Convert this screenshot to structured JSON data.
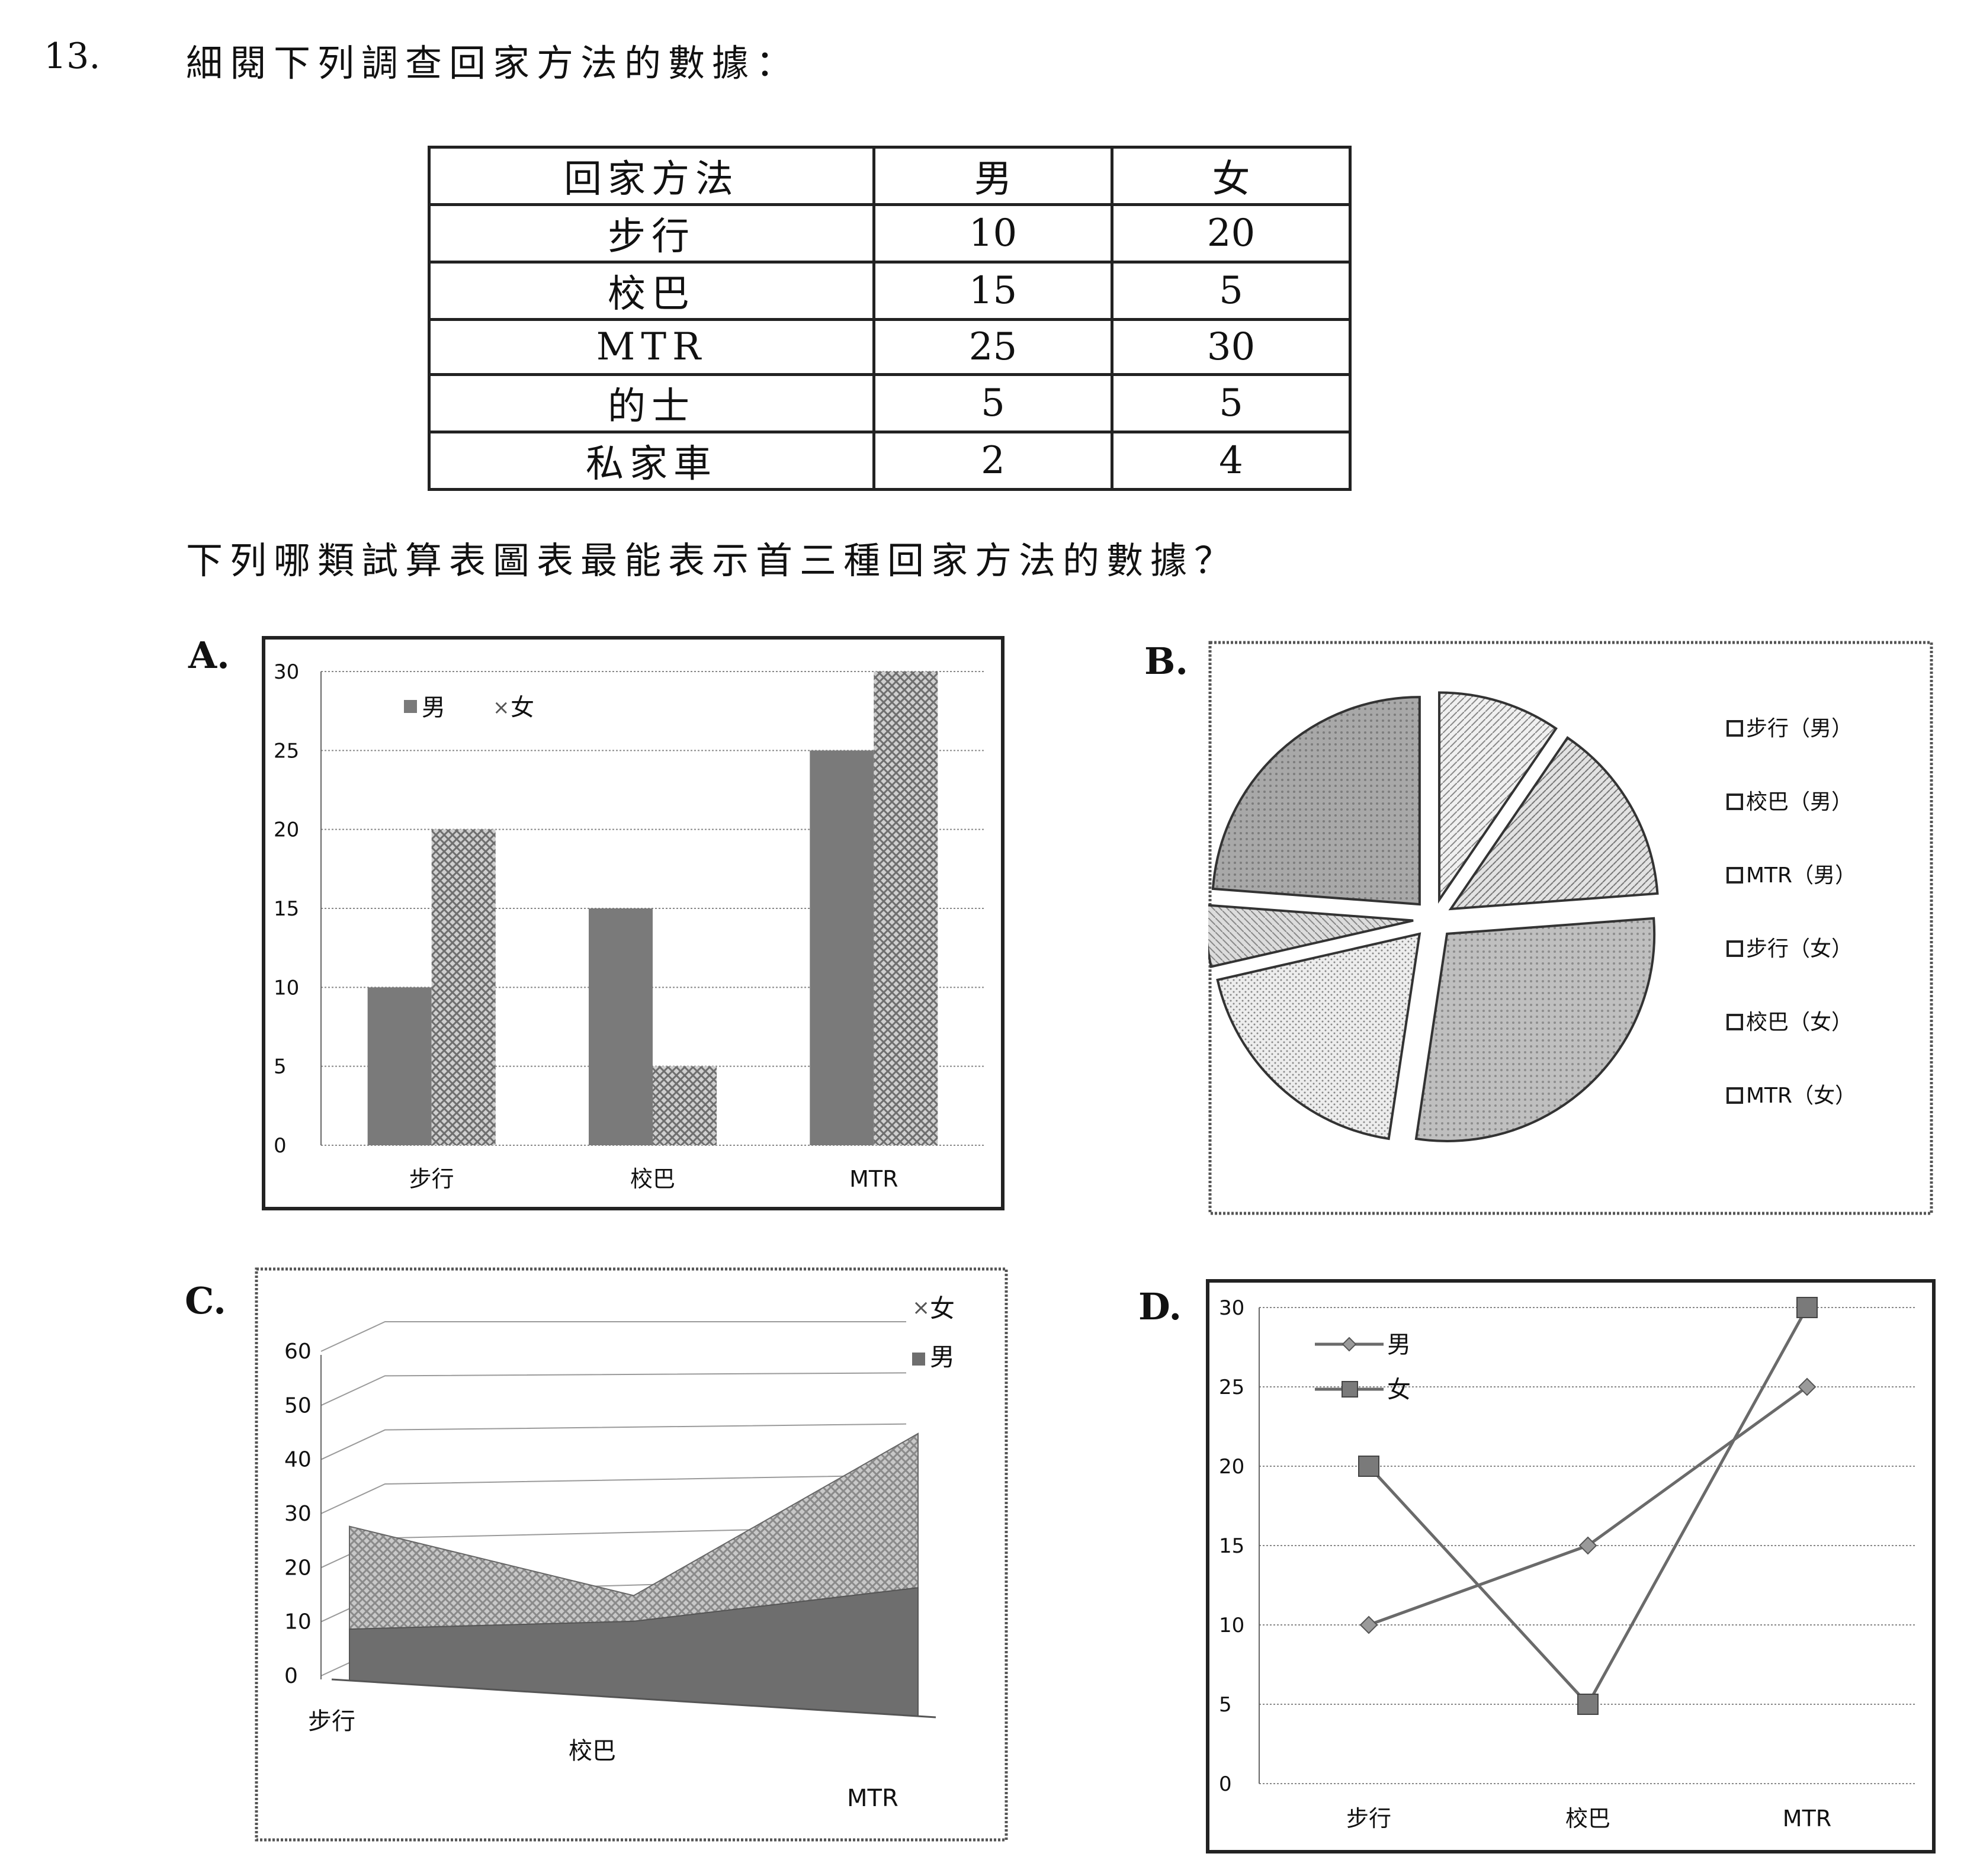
{
  "question": {
    "number": "13.",
    "intro": "細閱下列調查回家方法的數據：",
    "table": {
      "headers": [
        "回家方法",
        "男",
        "女"
      ],
      "rows": [
        [
          "步行",
          "10",
          "20"
        ],
        [
          "校巴",
          "15",
          "5"
        ],
        [
          "MTR",
          "25",
          "30"
        ],
        [
          "的士",
          "5",
          "5"
        ],
        [
          "私家車",
          "2",
          "4"
        ]
      ]
    },
    "prompt": "下列哪類試算表圖表最能表示首三種回家方法的數據？"
  },
  "options": {
    "a": "A.",
    "b": "B.",
    "c": "C.",
    "d": "D."
  },
  "chart_data": [
    {
      "option": "A",
      "type": "bar",
      "categories": [
        "步行",
        "校巴",
        "MTR"
      ],
      "series": [
        {
          "name": "男",
          "values": [
            10,
            15,
            25
          ],
          "color": "#7a7a7a"
        },
        {
          "name": "女",
          "values": [
            20,
            5,
            30
          ],
          "color": "#bdbdbd"
        }
      ],
      "yticks": [
        "0",
        "5",
        "10",
        "15",
        "20",
        "25",
        "30"
      ],
      "ylim": [
        0,
        30
      ],
      "grid": true,
      "legend": "top-left"
    },
    {
      "option": "B",
      "type": "pie",
      "slices": [
        {
          "name": "步行（男）",
          "value": 10,
          "color": "#e6e6e6"
        },
        {
          "name": "校巴（男）",
          "value": 15,
          "color": "#d6d6d6"
        },
        {
          "name": "MTR（男）",
          "value": 25,
          "color": "#a4a4a4"
        },
        {
          "name": "步行（女）",
          "value": 20,
          "color": "#e0e0e0"
        },
        {
          "name": "校巴（女）",
          "value": 5,
          "color": "#d0d0d0"
        },
        {
          "name": "MTR（女）",
          "value": 30,
          "color": "#8e8e8e"
        }
      ],
      "exploded": true,
      "legend": "right"
    },
    {
      "option": "C",
      "type": "area",
      "stacked": true,
      "three_d": true,
      "categories": [
        "步行",
        "校巴",
        "MTR"
      ],
      "series": [
        {
          "name": "男",
          "values": [
            10,
            15,
            25
          ],
          "color": "#6e6e6e"
        },
        {
          "name": "女",
          "values": [
            20,
            5,
            30
          ],
          "color": "#b8b8b8"
        }
      ],
      "yticks": [
        "0",
        "10",
        "20",
        "30",
        "40",
        "50",
        "60"
      ],
      "ylim": [
        0,
        60
      ],
      "legend": "top-right"
    },
    {
      "option": "D",
      "type": "line",
      "categories": [
        "步行",
        "校巴",
        "MTR"
      ],
      "series": [
        {
          "name": "男",
          "values": [
            10,
            15,
            25
          ],
          "color": "#6a6a6a",
          "marker": "diamond"
        },
        {
          "name": "女",
          "values": [
            20,
            5,
            30
          ],
          "color": "#6a6a6a",
          "marker": "square"
        }
      ],
      "yticks": [
        "0",
        "5",
        "10",
        "15",
        "20",
        "25",
        "30"
      ],
      "ylim": [
        0,
        30
      ],
      "grid": true,
      "legend": "top-left"
    }
  ]
}
